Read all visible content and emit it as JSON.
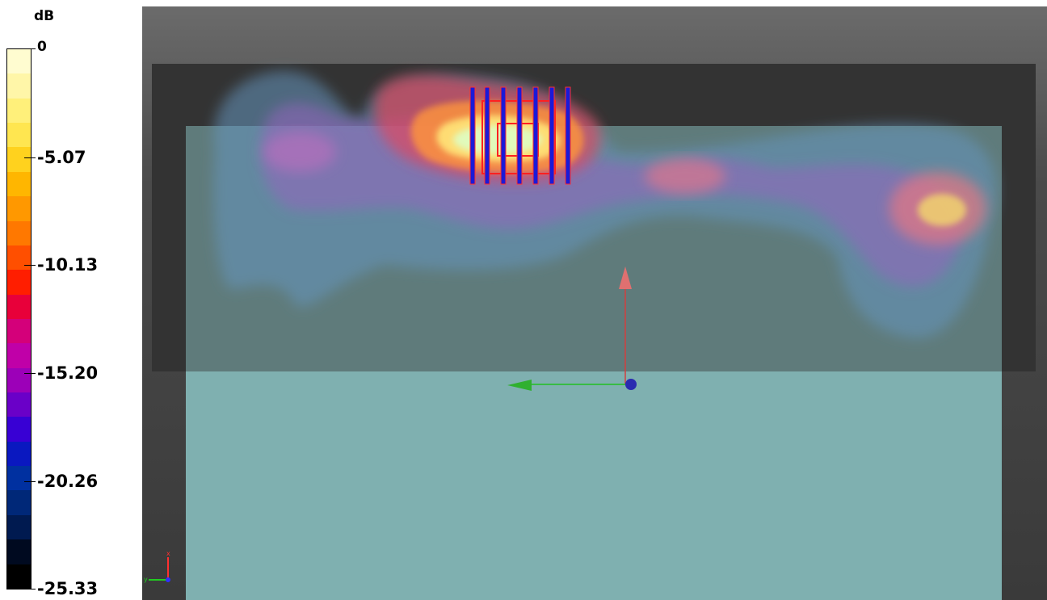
{
  "legend": {
    "unit": "dB",
    "ticks": [
      "0",
      "-5.07",
      "-10.13",
      "-15.20",
      "-20.26",
      "-25.33"
    ],
    "min": -25.33,
    "max": 0,
    "colors": [
      "#fffcd0",
      "#fff6a8",
      "#fff07a",
      "#ffe650",
      "#ffd21e",
      "#ffb600",
      "#ff9800",
      "#ff7800",
      "#ff4f00",
      "#ff1e00",
      "#e8003a",
      "#d4007a",
      "#c000a8",
      "#9c00b8",
      "#6a00c8",
      "#3800d4",
      "#0a18c0",
      "#0030a0",
      "#002878",
      "#001a50",
      "#000a20",
      "#000000"
    ]
  },
  "scene": {
    "background_color": "#555555",
    "floor_color": "#7fb0b0",
    "axis_colors": {
      "x": "#ff0000",
      "y": "#00cc00",
      "z": "#3030ff"
    },
    "corner_axis_labels": [
      "x",
      "y"
    ]
  }
}
